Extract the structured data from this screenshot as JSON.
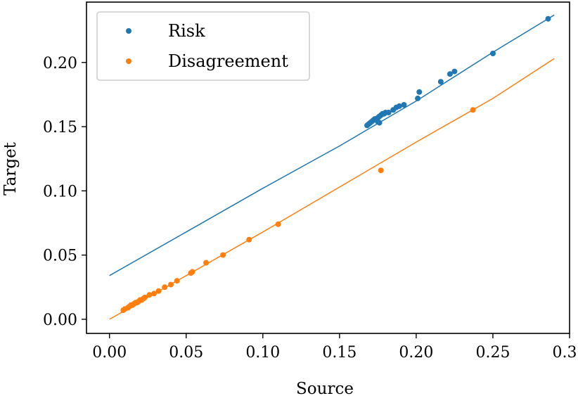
{
  "chart_data": {
    "type": "scatter",
    "title": "",
    "xlabel": "Source",
    "ylabel": "Target",
    "xlim": [
      -0.015,
      0.3
    ],
    "ylim": [
      -0.011,
      0.247
    ],
    "xticks": [
      0.0,
      0.05,
      0.1,
      0.15,
      0.2,
      0.25,
      0.3
    ],
    "xtick_labels": [
      "0.00",
      "0.05",
      "0.10",
      "0.15",
      "0.20",
      "0.25",
      "0.30"
    ],
    "yticks": [
      0.0,
      0.05,
      0.1,
      0.15,
      0.2
    ],
    "ytick_labels": [
      "0.00",
      "0.05",
      "0.10",
      "0.15",
      "0.20"
    ],
    "grid": false,
    "legend_position": "top-left",
    "series": [
      {
        "name": "Risk",
        "color": "#1f77b4",
        "points": [
          [
            0.168,
            0.151
          ],
          [
            0.169,
            0.152
          ],
          [
            0.17,
            0.153
          ],
          [
            0.171,
            0.154
          ],
          [
            0.172,
            0.155
          ],
          [
            0.173,
            0.156
          ],
          [
            0.174,
            0.156
          ],
          [
            0.175,
            0.157
          ],
          [
            0.176,
            0.158
          ],
          [
            0.177,
            0.159
          ],
          [
            0.178,
            0.16
          ],
          [
            0.179,
            0.16
          ],
          [
            0.18,
            0.161
          ],
          [
            0.175,
            0.154
          ],
          [
            0.176,
            0.153
          ],
          [
            0.182,
            0.161
          ],
          [
            0.185,
            0.163
          ],
          [
            0.187,
            0.165
          ],
          [
            0.189,
            0.166
          ],
          [
            0.192,
            0.167
          ],
          [
            0.201,
            0.172
          ],
          [
            0.202,
            0.177
          ],
          [
            0.216,
            0.185
          ],
          [
            0.222,
            0.191
          ],
          [
            0.225,
            0.193
          ],
          [
            0.25,
            0.207
          ],
          [
            0.286,
            0.234
          ]
        ],
        "fit_line": [
          [
            0.0,
            0.034
          ],
          [
            0.05,
            0.068
          ],
          [
            0.1,
            0.102
          ],
          [
            0.15,
            0.135
          ],
          [
            0.2,
            0.17
          ],
          [
            0.25,
            0.208
          ],
          [
            0.29,
            0.237
          ]
        ]
      },
      {
        "name": "Disagreement",
        "color": "#ff7f0e",
        "points": [
          [
            0.009,
            0.007
          ],
          [
            0.01,
            0.008
          ],
          [
            0.012,
            0.009
          ],
          [
            0.013,
            0.01
          ],
          [
            0.014,
            0.011
          ],
          [
            0.015,
            0.011
          ],
          [
            0.016,
            0.012
          ],
          [
            0.017,
            0.013
          ],
          [
            0.018,
            0.013
          ],
          [
            0.019,
            0.014
          ],
          [
            0.02,
            0.015
          ],
          [
            0.021,
            0.015
          ],
          [
            0.022,
            0.016
          ],
          [
            0.023,
            0.017
          ],
          [
            0.026,
            0.019
          ],
          [
            0.029,
            0.02
          ],
          [
            0.032,
            0.022
          ],
          [
            0.036,
            0.025
          ],
          [
            0.04,
            0.027
          ],
          [
            0.044,
            0.03
          ],
          [
            0.053,
            0.036
          ],
          [
            0.054,
            0.037
          ],
          [
            0.063,
            0.044
          ],
          [
            0.074,
            0.05
          ],
          [
            0.091,
            0.062
          ],
          [
            0.11,
            0.074
          ],
          [
            0.177,
            0.116
          ],
          [
            0.237,
            0.163
          ]
        ],
        "fit_line": [
          [
            0.0,
            0.0
          ],
          [
            0.05,
            0.034
          ],
          [
            0.1,
            0.068
          ],
          [
            0.15,
            0.103
          ],
          [
            0.2,
            0.138
          ],
          [
            0.25,
            0.172
          ],
          [
            0.29,
            0.203
          ]
        ]
      }
    ]
  }
}
